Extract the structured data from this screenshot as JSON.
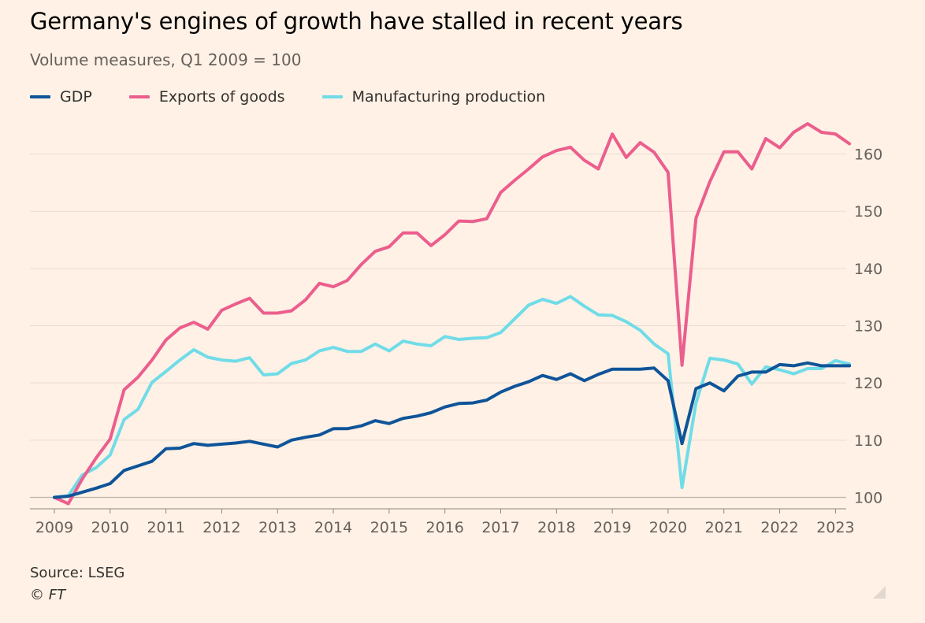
{
  "title": "Germany's engines of growth have stalled in recent years",
  "subtitle": "Volume measures, Q1 2009 = 100",
  "legend": [
    {
      "name": "GDP",
      "color": "#0f5499"
    },
    {
      "name": "Exports of goods",
      "color": "#eb5e8d"
    },
    {
      "name": "Manufacturing production",
      "color": "#70dce8"
    }
  ],
  "source": "Source: LSEG",
  "credit": "© FT",
  "icons": {
    "resize": "resize-corner-icon"
  },
  "chart_data": {
    "type": "line",
    "x_start": 2009.0,
    "x_step": 0.25,
    "xlim": [
      2009,
      2023.15
    ],
    "ylim": [
      98,
      166
    ],
    "x_ticks": [
      "2009",
      "2010",
      "2011",
      "2012",
      "2013",
      "2014",
      "2015",
      "2016",
      "2017",
      "2018",
      "2019",
      "2020",
      "2021",
      "2022",
      "2023"
    ],
    "y_ticks": [
      100,
      110,
      120,
      130,
      140,
      150,
      160
    ],
    "grid": true,
    "y_axis_position": "right",
    "legend_position": "top-left",
    "series": [
      {
        "name": "GDP",
        "color": "#0f5499",
        "values": [
          100.0,
          100.2,
          100.9,
          101.6,
          102.4,
          104.7,
          105.5,
          106.3,
          108.5,
          108.6,
          109.4,
          109.1,
          109.3,
          109.5,
          109.8,
          109.3,
          108.8,
          110.0,
          110.5,
          110.9,
          112.0,
          112.0,
          112.5,
          113.4,
          112.9,
          113.8,
          114.2,
          114.8,
          115.8,
          116.4,
          116.5,
          117.0,
          118.4,
          119.4,
          120.2,
          121.3,
          120.6,
          121.6,
          120.4,
          121.5,
          122.4,
          122.4,
          122.4,
          122.6,
          120.4,
          109.4,
          119.0,
          120.0,
          118.6,
          121.2,
          121.9,
          121.9,
          123.2,
          123.0,
          123.5,
          123.0,
          123.0,
          123.0
        ]
      },
      {
        "name": "Exports of goods",
        "color": "#eb5e8d",
        "values": [
          100.0,
          98.9,
          103.2,
          106.9,
          110.2,
          118.8,
          121.0,
          124.0,
          127.5,
          129.6,
          130.6,
          129.4,
          132.7,
          133.8,
          134.8,
          132.2,
          132.2,
          132.6,
          134.5,
          137.4,
          136.8,
          137.9,
          140.7,
          143.0,
          143.8,
          146.2,
          146.2,
          144.0,
          145.9,
          148.3,
          148.2,
          148.7,
          153.3,
          155.4,
          157.4,
          159.5,
          160.6,
          161.2,
          158.9,
          157.4,
          163.5,
          159.4,
          162.0,
          160.3,
          156.8,
          123.1,
          148.8,
          155.2,
          160.4,
          160.4,
          157.4,
          162.7,
          161.1,
          163.8,
          165.3,
          163.8,
          163.5,
          161.8
        ]
      },
      {
        "name": "Manufacturing production",
        "color": "#70dce8",
        "values": [
          100.0,
          100.3,
          103.9,
          105.2,
          107.4,
          113.6,
          115.4,
          120.1,
          122.0,
          124.0,
          125.8,
          124.5,
          124.0,
          123.8,
          124.4,
          121.4,
          121.6,
          123.4,
          124.0,
          125.6,
          126.2,
          125.5,
          125.5,
          126.8,
          125.6,
          127.3,
          126.8,
          126.5,
          128.1,
          127.6,
          127.8,
          127.9,
          128.8,
          131.2,
          133.6,
          134.6,
          133.9,
          135.1,
          133.4,
          131.9,
          131.8,
          130.7,
          129.2,
          126.8,
          125.1,
          101.7,
          116.5,
          124.3,
          124.0,
          123.3,
          119.8,
          122.8,
          122.3,
          121.6,
          122.5,
          122.5,
          123.9,
          123.3
        ]
      }
    ]
  }
}
